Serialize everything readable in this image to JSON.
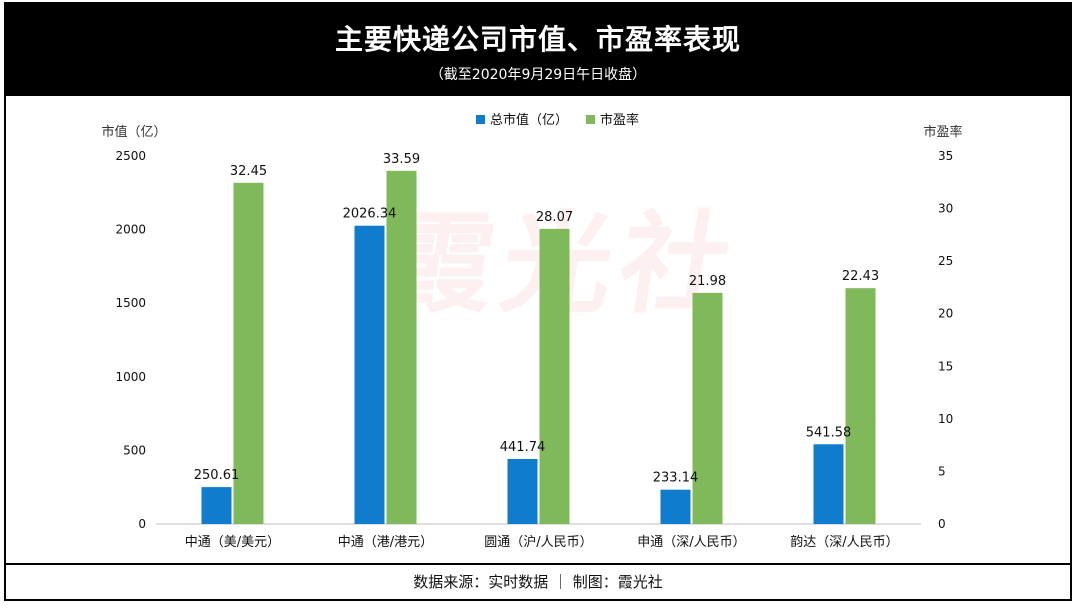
{
  "header": {
    "title": "主要快递公司市值、市盈率表现",
    "subtitle": "（截至2020年9月29日午日收盘）"
  },
  "watermark": "霞光社",
  "footer": {
    "text": "数据来源：实时数据 ｜ 制图：霞光社"
  },
  "colors": {
    "market_cap": "#0f7ccd",
    "pe_ratio": "#7fb95a",
    "header_bg": "#000000"
  },
  "chart_data": {
    "type": "bar",
    "categories": [
      "中通（美/美元）",
      "中通（港/港元）",
      "圆通（沪/人民币）",
      "申通（深/人民币）",
      "韵达（深/人民币）"
    ],
    "series": [
      {
        "name": "总市值（亿）",
        "axis": "left",
        "values": [
          250.61,
          2026.34,
          441.74,
          233.14,
          541.58
        ],
        "labels": [
          "250.61",
          "2026.34",
          "441.74",
          "233.14",
          "541.58"
        ]
      },
      {
        "name": "市盈率",
        "axis": "right",
        "values": [
          32.45,
          33.59,
          28.07,
          21.98,
          22.43
        ],
        "labels": [
          "32.45",
          "33.59",
          "28.07",
          "21.98",
          "22.43"
        ]
      }
    ],
    "ylabel_left": "市值（亿）",
    "ylabel_right": "市盈率",
    "ylim_left": [
      0,
      2500
    ],
    "yticks_left": [
      "0",
      "500",
      "1000",
      "1500",
      "2000",
      "2500"
    ],
    "ylim_right": [
      0,
      35
    ],
    "yticks_right": [
      "0",
      "5",
      "10",
      "15",
      "20",
      "25",
      "30",
      "35"
    ],
    "legend_position": "top-center",
    "grid": false
  }
}
